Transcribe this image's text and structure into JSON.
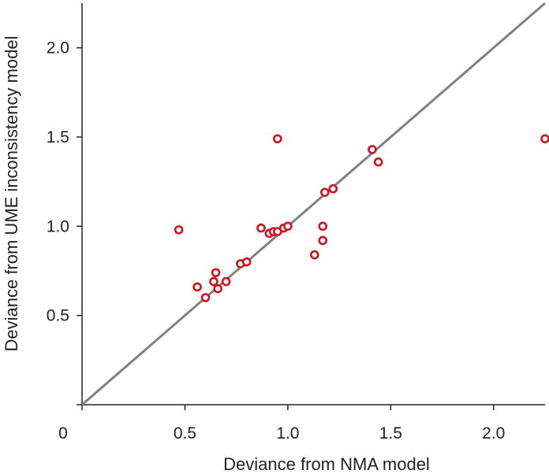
{
  "chart_data": {
    "type": "scatter",
    "xlabel": "Deviance from NMA model",
    "ylabel": "Deviance from UME inconsistency model",
    "origin_label": "0",
    "xlim": [
      0,
      2.25
    ],
    "ylim": [
      0,
      2.25
    ],
    "x_ticks": [
      0.5,
      1.0,
      1.5,
      2.0
    ],
    "x_tick_labels": [
      "0.5",
      "1.0",
      "1.5",
      "2.0"
    ],
    "y_ticks": [
      0.5,
      1.0,
      1.5,
      2.0
    ],
    "y_tick_labels": [
      "0.5",
      "1.0",
      "1.5",
      "2.0"
    ],
    "grid": false,
    "reference_line": {
      "from": [
        0,
        0
      ],
      "to": [
        2.25,
        2.25
      ]
    },
    "colors": {
      "marker": "#d0141e",
      "reference_line": "#808080",
      "axis": "#222222"
    },
    "points": [
      {
        "x": 0.47,
        "y": 0.98
      },
      {
        "x": 0.56,
        "y": 0.66
      },
      {
        "x": 0.6,
        "y": 0.6
      },
      {
        "x": 0.64,
        "y": 0.69
      },
      {
        "x": 0.65,
        "y": 0.74
      },
      {
        "x": 0.66,
        "y": 0.65
      },
      {
        "x": 0.7,
        "y": 0.69
      },
      {
        "x": 0.77,
        "y": 0.79
      },
      {
        "x": 0.8,
        "y": 0.8
      },
      {
        "x": 0.87,
        "y": 0.99
      },
      {
        "x": 0.91,
        "y": 0.96
      },
      {
        "x": 0.93,
        "y": 0.97
      },
      {
        "x": 0.95,
        "y": 0.97
      },
      {
        "x": 0.98,
        "y": 0.99
      },
      {
        "x": 1.0,
        "y": 1.0
      },
      {
        "x": 0.95,
        "y": 1.49
      },
      {
        "x": 1.13,
        "y": 0.84
      },
      {
        "x": 1.17,
        "y": 1.0
      },
      {
        "x": 1.17,
        "y": 0.92
      },
      {
        "x": 1.18,
        "y": 1.19
      },
      {
        "x": 1.22,
        "y": 1.21
      },
      {
        "x": 1.41,
        "y": 1.43
      },
      {
        "x": 1.44,
        "y": 1.36
      },
      {
        "x": 2.25,
        "y": 1.49
      }
    ]
  }
}
